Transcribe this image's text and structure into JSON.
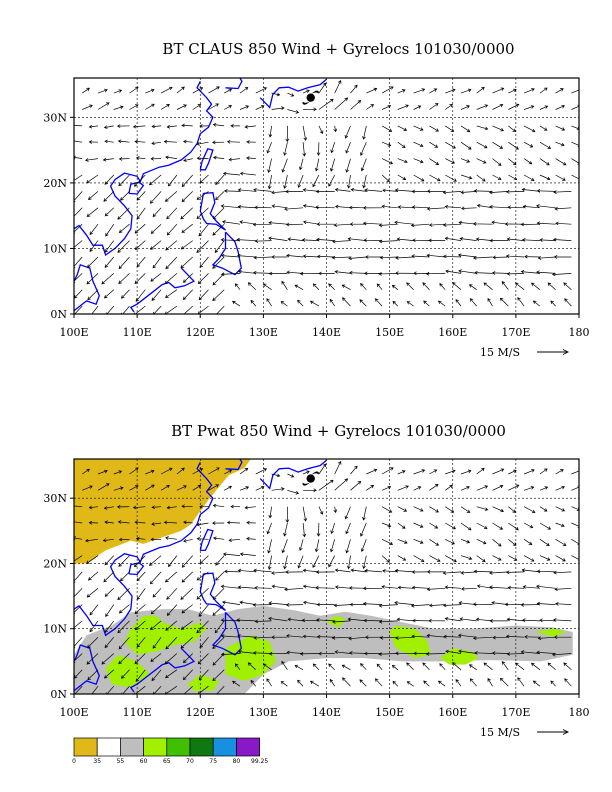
{
  "panels": [
    {
      "title": "BT CLAUS 850 Wind + Gyrelocs 101030/0000",
      "lon_labels": [
        "100E",
        "110E",
        "120E",
        "130E",
        "140E",
        "150E",
        "160E",
        "170E",
        "180"
      ],
      "lat_labels": [
        "0N",
        "10N",
        "20N",
        "30N"
      ],
      "ref_vector_label": "15 M/S",
      "lon_range": [
        100,
        180
      ],
      "lat_range": [
        0,
        36
      ],
      "shaded": false
    },
    {
      "title": "BT Pwat 850 Wind + Gyrelocs 101030/0000",
      "lon_labels": [
        "100E",
        "110E",
        "120E",
        "130E",
        "140E",
        "150E",
        "160E",
        "170E",
        "180"
      ],
      "lat_labels": [
        "0N",
        "10N",
        "20N",
        "30N"
      ],
      "ref_vector_label": "15 M/S",
      "lon_range": [
        100,
        180
      ],
      "lat_range": [
        0,
        36
      ],
      "shaded": true
    }
  ],
  "storm_symbol": {
    "name": "cyclone-symbol",
    "lon": 137.5,
    "lat": 33
  },
  "colorbar": {
    "labels": [
      "0",
      "35",
      "55",
      "60",
      "65",
      "70",
      "75",
      "80",
      "99.25"
    ],
    "colors": [
      "#e0b818",
      "#ffffff",
      "#bebebe",
      "#a0f000",
      "#40c000",
      "#107810",
      "#1890e0",
      "#8818c8"
    ]
  },
  "colors": {
    "coastline": "#0000ff",
    "grid": "#000000",
    "vector": "#000000"
  }
}
